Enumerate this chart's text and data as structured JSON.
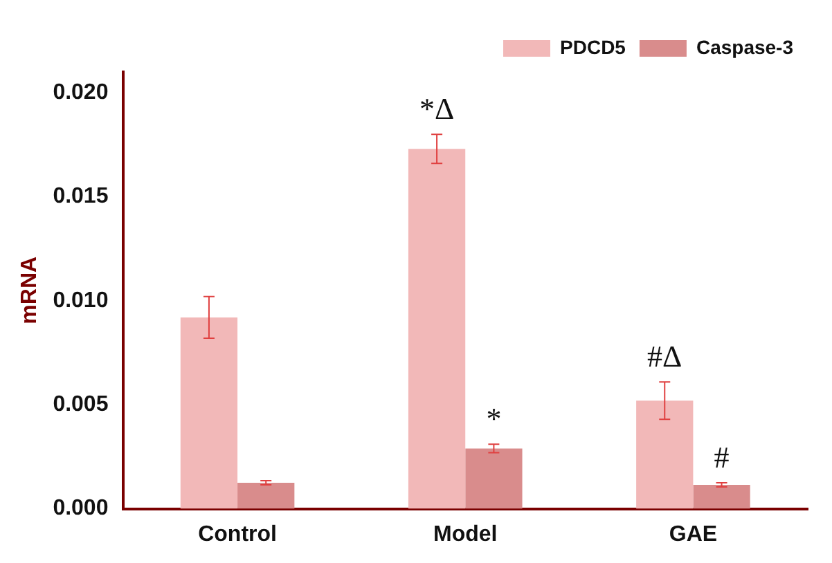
{
  "chart_data": {
    "type": "bar",
    "ylabel": "mRNA",
    "categories": [
      "Control",
      "Model",
      "GAE"
    ],
    "series": [
      {
        "name": "PDCD5",
        "color": "#f2b8b8",
        "values": [
          0.0092,
          0.0173,
          0.0052
        ],
        "errors": [
          0.001,
          0.0007,
          0.0009
        ]
      },
      {
        "name": "Caspase-3",
        "color": "#d98c8c",
        "values": [
          0.00125,
          0.0029,
          0.00115
        ],
        "errors": [
          0.0001,
          0.0002,
          0.0001
        ]
      }
    ],
    "ylim": [
      0,
      0.021
    ],
    "yticks": [
      {
        "value": 0,
        "label": "0.000"
      },
      {
        "value": 0.005,
        "label": "0.005"
      },
      {
        "value": 0.01,
        "label": "0.010"
      },
      {
        "value": 0.015,
        "label": "0.015"
      },
      {
        "value": 0.02,
        "label": "0.020"
      }
    ],
    "annotations": [
      {
        "text": "*Δ",
        "x": "Model",
        "y": 0.0173
      },
      {
        "text": "*",
        "x": "Model",
        "y": 0.0029
      },
      {
        "text": "#Δ",
        "x": "GAE",
        "y": 0.0052
      },
      {
        "text": "#",
        "x": "GAE",
        "y": 0.00115
      }
    ],
    "grid": false,
    "legend": "top right"
  }
}
